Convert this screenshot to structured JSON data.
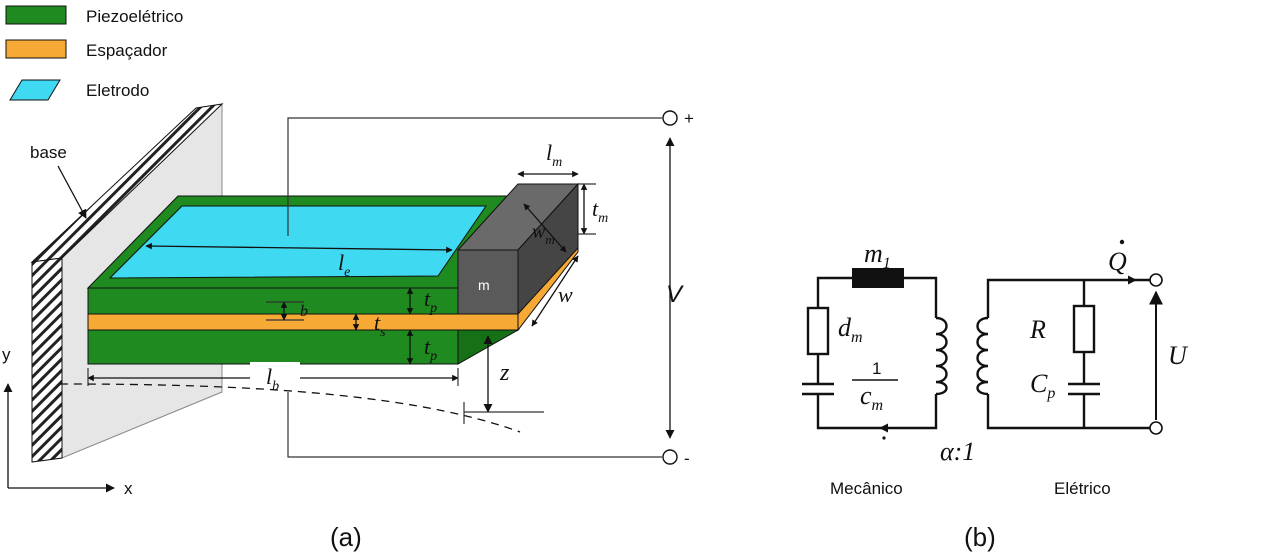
{
  "colors": {
    "piezo": "#1f8a1f",
    "piezo_dark": "#167016",
    "spacer": "#f7a935",
    "electrode": "#3fd9f2",
    "mass": "#5a5a5a",
    "base": "#e6e6e6"
  },
  "legend": [
    {
      "label": "Piezoelétrico",
      "swatch": "piezo"
    },
    {
      "label": "Espaçador",
      "swatch": "spacer"
    },
    {
      "label": "Eletrodo",
      "swatch": "electrode"
    }
  ],
  "left": {
    "base_label": "base",
    "mass_label": "m",
    "dims": {
      "le": "l",
      "le_sub": "e",
      "lm": "l",
      "lm_sub": "m",
      "tm": "t",
      "tm_sub": "m",
      "wm": "w",
      "wm_sub": "m",
      "w": "w",
      "tp_top": "t",
      "tp_top_sub": "p",
      "tp_bot": "t",
      "tp_bot_sub": "p",
      "ts": "t",
      "ts_sub": "s",
      "b": "b",
      "lb": "l",
      "lb_sub": "b",
      "z": "z",
      "V": "V"
    },
    "terminals": {
      "plus": "+",
      "minus": "-"
    },
    "axes": {
      "y": "y",
      "x": "x"
    },
    "caption": "(a)"
  },
  "right": {
    "m1": "m",
    "m1_sub": "1",
    "dm": "d",
    "dm_sub": "m",
    "one": "1",
    "cm": "c",
    "cm_sub": "m",
    "R": "R",
    "Cp": "C",
    "Cp_sub": "p",
    "Qdot": "Q",
    "U": "U",
    "ratio": "α:1",
    "mech_label": "Mecânico",
    "elec_label": "Elétrico",
    "caption": "(b)"
  }
}
